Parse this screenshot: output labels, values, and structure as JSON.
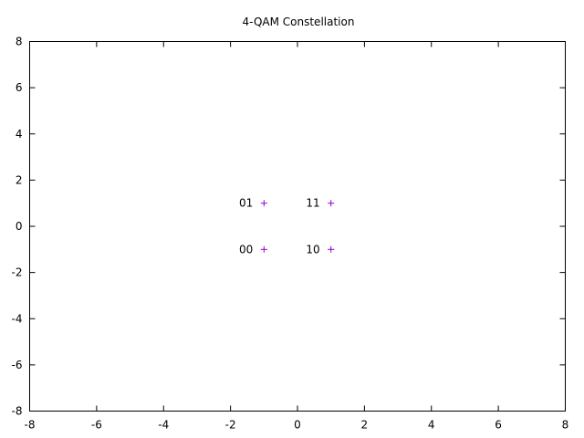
{
  "chart_data": {
    "type": "scatter",
    "title": "4-QAM Constellation",
    "xlabel": "",
    "ylabel": "",
    "xlim": [
      -8,
      8
    ],
    "ylim": [
      -8,
      8
    ],
    "x_ticks": [
      "-8",
      "-6",
      "-4",
      "-2",
      "0",
      "2",
      "4",
      "6",
      "8"
    ],
    "y_ticks": [
      "-8",
      "-6",
      "-4",
      "-2",
      "0",
      "2",
      "4",
      "6",
      "8"
    ],
    "grid": false,
    "legend": false,
    "marker": "plus",
    "series": [
      {
        "color": "#9400d3",
        "points": [
          {
            "x": -1,
            "y": 1,
            "label": "01"
          },
          {
            "x": 1,
            "y": 1,
            "label": "11"
          },
          {
            "x": -1,
            "y": -1,
            "label": "00"
          },
          {
            "x": 1,
            "y": -1,
            "label": "10"
          }
        ]
      }
    ]
  }
}
